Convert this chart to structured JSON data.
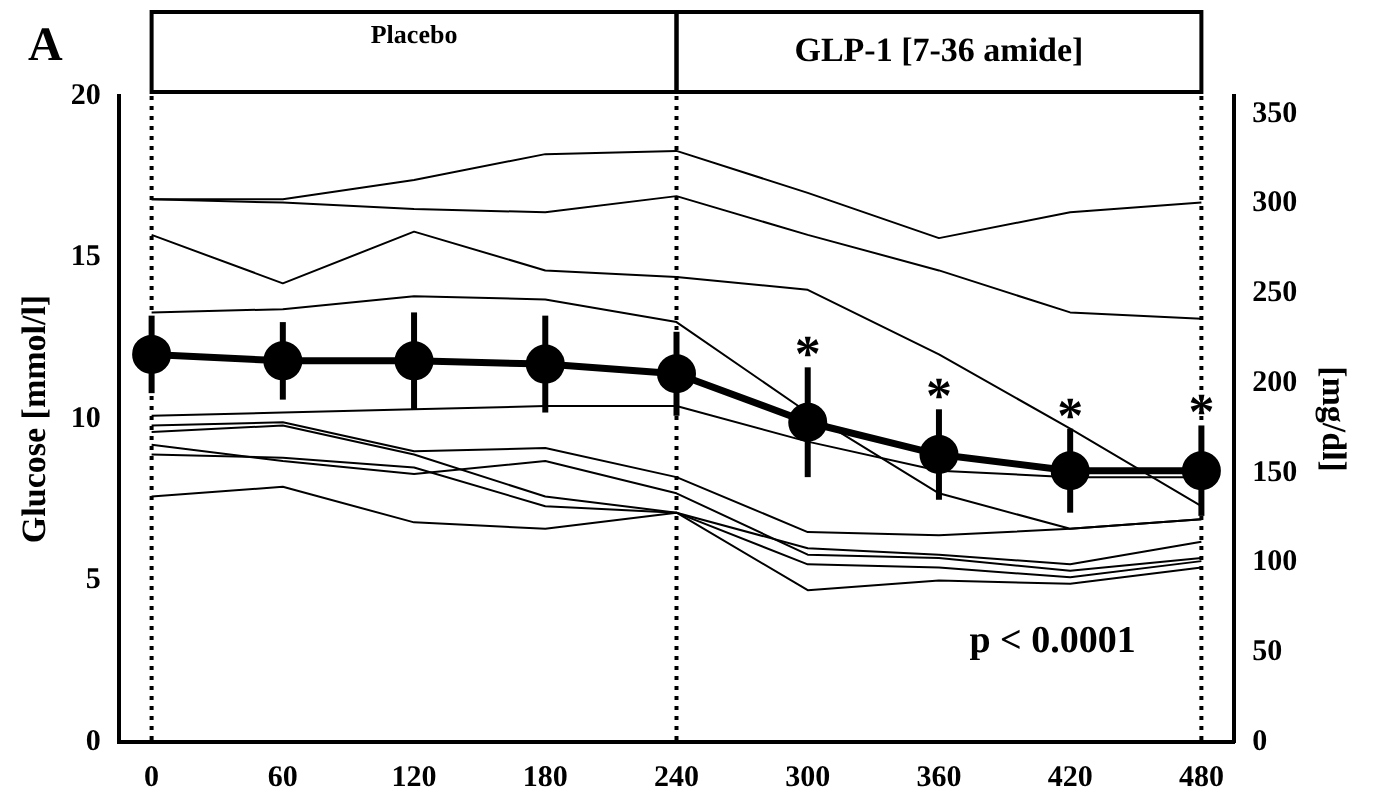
{
  "chart_data": {
    "type": "line",
    "ylabel": "Glucose [mmol/l]",
    "y2label": "[mg/dl]",
    "x": [
      0,
      60,
      120,
      180,
      240,
      300,
      360,
      420,
      480
    ],
    "xlim": [
      -15,
      495
    ],
    "xticks": [
      0,
      60,
      120,
      180,
      240,
      300,
      360,
      420,
      480
    ],
    "ylim": [
      0,
      20
    ],
    "yticks": [
      0,
      5,
      10,
      15,
      20
    ],
    "y2lim": [
      0,
      360
    ],
    "y2ticks": [
      0,
      50,
      100,
      150,
      200,
      250,
      300,
      350
    ],
    "marker": "none",
    "line_style": "solid",
    "grid": false,
    "legend": false,
    "series": [
      {
        "color": "#000000",
        "values": [
          16.8,
          16.8,
          17.4,
          18.2,
          18.3,
          17.0,
          15.6,
          16.4,
          16.7
        ]
      },
      {
        "color": "#000000",
        "values": [
          16.8,
          16.7,
          16.5,
          16.4,
          16.9,
          15.7,
          14.6,
          13.3,
          13.1
        ]
      },
      {
        "color": "#000000",
        "values": [
          15.7,
          14.2,
          15.8,
          14.6,
          14.4,
          14.0,
          12.0,
          9.7,
          7.3
        ]
      },
      {
        "color": "#000000",
        "values": [
          13.3,
          13.4,
          13.8,
          13.7,
          13.0,
          10.2,
          7.7,
          6.6,
          6.9
        ]
      },
      {
        "color": "#000000",
        "values": [
          10.1,
          10.2,
          10.3,
          10.4,
          10.4,
          9.3,
          8.4,
          8.2,
          8.2
        ]
      },
      {
        "color": "#000000",
        "values": [
          9.8,
          9.9,
          9.0,
          9.1,
          8.2,
          6.5,
          6.4,
          6.6,
          6.9
        ]
      },
      {
        "color": "#000000",
        "values": [
          9.6,
          9.8,
          8.9,
          7.6,
          7.1,
          6.0,
          5.8,
          5.5,
          6.2
        ]
      },
      {
        "color": "#000000",
        "values": [
          9.2,
          8.7,
          8.3,
          8.7,
          7.7,
          5.8,
          5.7,
          5.3,
          5.7
        ]
      },
      {
        "color": "#000000",
        "values": [
          8.9,
          8.8,
          8.5,
          7.3,
          7.1,
          5.5,
          5.4,
          5.1,
          5.6
        ]
      },
      {
        "color": "#000000",
        "values": [
          7.6,
          7.9,
          6.8,
          6.6,
          7.1,
          4.7,
          5.0,
          4.9,
          5.4
        ]
      },
      {
        "color": "#000000",
        "marker": "circle",
        "values": [
          12.0,
          11.8,
          11.8,
          11.7,
          11.4,
          9.9,
          8.9,
          8.4,
          8.4
        ],
        "errors": [
          1.2,
          1.2,
          1.5,
          1.5,
          1.3,
          1.7,
          1.4,
          1.3,
          1.4
        ]
      }
    ],
    "ref_lines": [
      {
        "axis": "x",
        "value": 0,
        "line_style": "dotted"
      },
      {
        "axis": "x",
        "value": 240,
        "line_style": "dotted"
      },
      {
        "axis": "x",
        "value": 480,
        "line_style": "dotted"
      }
    ],
    "annotations": [
      "A",
      "Placebo",
      "GLP-1 [7-36 amide]",
      "p < 0.0001",
      {
        "text": "*",
        "x": 300,
        "y": 9.9
      },
      {
        "text": "*",
        "x": 360,
        "y": 8.9
      },
      {
        "text": "*",
        "x": 420,
        "y": 8.4
      },
      {
        "text": "*",
        "x": 480,
        "y": 8.4
      }
    ]
  }
}
